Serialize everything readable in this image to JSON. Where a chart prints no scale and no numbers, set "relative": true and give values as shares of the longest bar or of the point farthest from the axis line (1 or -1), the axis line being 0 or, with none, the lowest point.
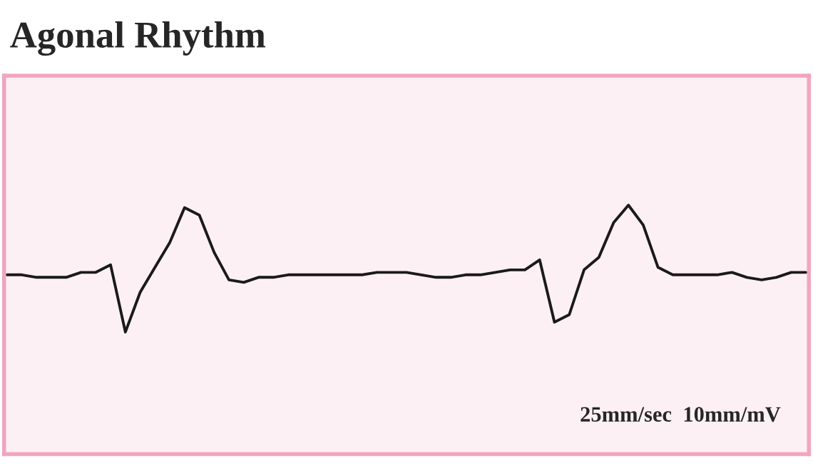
{
  "chart_data": {
    "type": "line",
    "title": "Agonal Rhythm",
    "relative": true,
    "categories": [
      null,
      null,
      null,
      null,
      null,
      null,
      null,
      null,
      null,
      null,
      null,
      null,
      null,
      null,
      null,
      null,
      null,
      null,
      null,
      null,
      null,
      null,
      null,
      null,
      null,
      null,
      null,
      null,
      null,
      null,
      null,
      null,
      null,
      null,
      null,
      null,
      null,
      null,
      null,
      null,
      null,
      null,
      null,
      null,
      null,
      null,
      null,
      null,
      null,
      null,
      null,
      null,
      null,
      null,
      null
    ],
    "series": [
      {
        "color": "#1a1a1a",
        "values": [
          0.72,
          0.72,
          0.71,
          0.71,
          0.71,
          0.73,
          0.73,
          0.76,
          0.49,
          0.65,
          0.75,
          0.85,
          0.99,
          0.96,
          0.81,
          0.7,
          0.69,
          0.71,
          0.71,
          0.72,
          0.72,
          0.72,
          0.72,
          0.72,
          0.72,
          0.73,
          0.73,
          0.73,
          0.72,
          0.71,
          0.71,
          0.72,
          0.72,
          0.73,
          0.74,
          0.74,
          0.78,
          0.53,
          0.56,
          0.74,
          0.79,
          0.93,
          1,
          0.92,
          0.75,
          0.72,
          0.72,
          0.72,
          0.72,
          0.73,
          0.71,
          0.7,
          0.71,
          0.73,
          0.73
        ]
      }
    ],
    "annotations": [
      "25mm/sec  10mm/mV"
    ],
    "marker": "none",
    "line_style": "solid"
  }
}
